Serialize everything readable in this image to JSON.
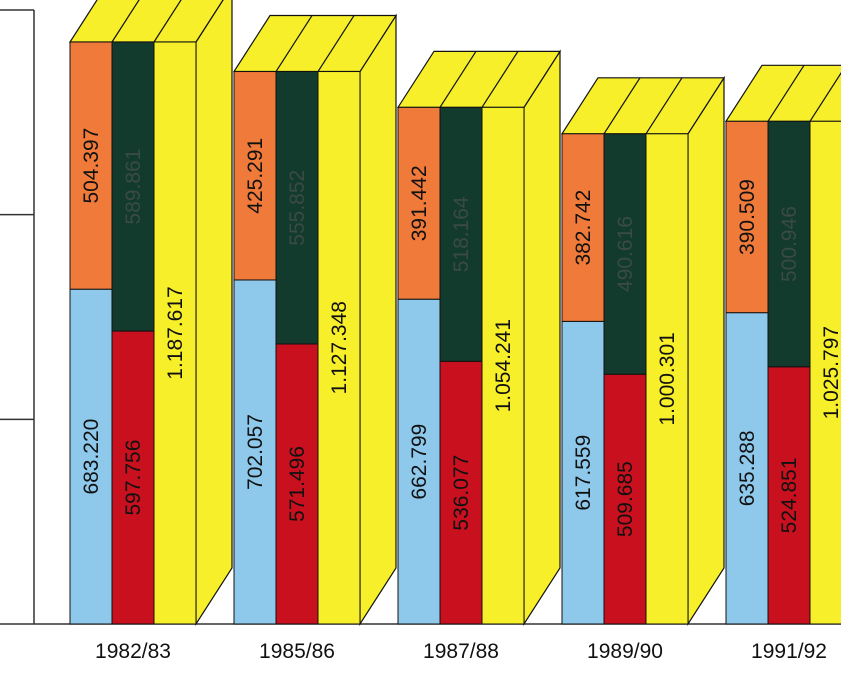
{
  "chart_data": {
    "type": "bar",
    "categories": [
      "1982/83",
      "1985/86",
      "1987/88",
      "1989/90",
      "1991/92"
    ],
    "stacks": [
      {
        "series": [
          {
            "values": [
              683220,
              702057,
              662799,
              617559,
              635288
            ],
            "labels": [
              "683.220",
              "702.057",
              "662.799",
              "617.559",
              "635.288"
            ]
          },
          {
            "values": [
              504397,
              425291,
              391442,
              382742,
              390509
            ],
            "labels": [
              "504.397",
              "425.291",
              "391.442",
              "382.742",
              "390.509"
            ]
          }
        ]
      },
      {
        "series": [
          {
            "values": [
              597756,
              571496,
              536077,
              509685,
              524851
            ],
            "labels": [
              "597.756",
              "571.496",
              "536.077",
              "509.685",
              "524.851"
            ]
          },
          {
            "values": [
              589861,
              555852,
              518164,
              490616,
              500946
            ],
            "labels": [
              "589.861",
              "555.852",
              "518.164",
              "490.616",
              "500.946"
            ]
          }
        ]
      },
      {
        "series": [
          {
            "values": [
              1187617,
              1127348,
              1054241,
              1000301,
              1025797
            ],
            "labels": [
              "1.187.617",
              "1.127.348",
              "1.054.241",
              "1.000.301",
              "1.025.797"
            ]
          }
        ]
      }
    ],
    "ylim": [
      0,
      1350000
    ],
    "grid": false,
    "legend": "none",
    "colors": {
      "light_blue": "#8ec9ec",
      "orange": "#f07a3a",
      "red": "#c8101e",
      "dark_green": "#133b2d",
      "yellow": "#f6ef2a",
      "axis": "#333333"
    }
  }
}
